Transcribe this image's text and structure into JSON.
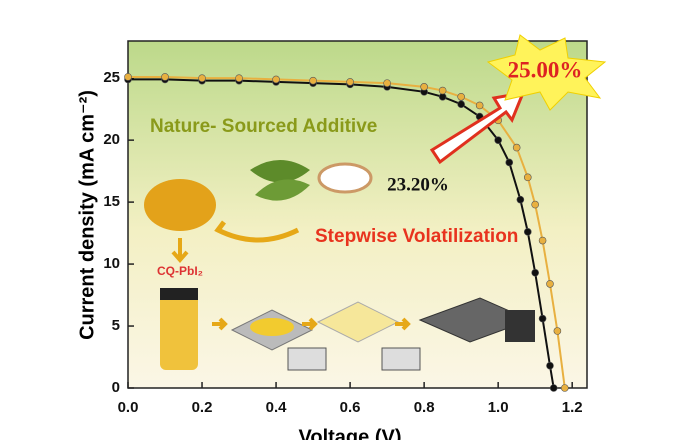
{
  "chart_data": {
    "type": "line",
    "x_label": "Voltage (V)",
    "y_label": "Current density (mA cm⁻²)",
    "annotations": [
      "Nature- Sourced Additive",
      "Stepwise Volatilization",
      "23.20%",
      "25.00%",
      "CQ-PbI₂"
    ],
    "xlim": [
      0,
      1.24
    ],
    "ylim": [
      0,
      28
    ],
    "xticks": [
      {
        "value": 0,
        "label": "0.0"
      },
      0.2,
      0.4,
      0.6,
      0.8,
      {
        "value": 1,
        "label": "1.0"
      },
      1.2
    ],
    "yticks": [
      0,
      5,
      10,
      15,
      20,
      25
    ],
    "series": [
      {
        "name": "23.20%",
        "color": "#111111",
        "x": [
          0,
          0.1,
          0.2,
          0.3,
          0.4,
          0.5,
          0.6,
          0.7,
          0.8,
          0.85,
          0.9,
          0.95,
          1.0,
          1.03,
          1.06,
          1.08,
          1.1,
          1.12,
          1.14,
          1.15
        ],
        "values": [
          24.9,
          24.9,
          24.8,
          24.8,
          24.7,
          24.6,
          24.5,
          24.3,
          23.9,
          23.5,
          22.9,
          21.9,
          20.0,
          18.2,
          15.2,
          12.6,
          9.3,
          5.6,
          1.8,
          0
        ]
      },
      {
        "name": "25.00%",
        "color": "#e8b040",
        "x": [
          0,
          0.1,
          0.2,
          0.3,
          0.4,
          0.5,
          0.6,
          0.7,
          0.8,
          0.85,
          0.9,
          0.95,
          1.0,
          1.05,
          1.08,
          1.1,
          1.12,
          1.14,
          1.16,
          1.18
        ],
        "values": [
          25.1,
          25.1,
          25.0,
          25.0,
          24.9,
          24.8,
          24.7,
          24.6,
          24.3,
          24.0,
          23.5,
          22.8,
          21.6,
          19.4,
          17.0,
          14.8,
          11.9,
          8.4,
          4.6,
          0
        ]
      }
    ]
  }
}
